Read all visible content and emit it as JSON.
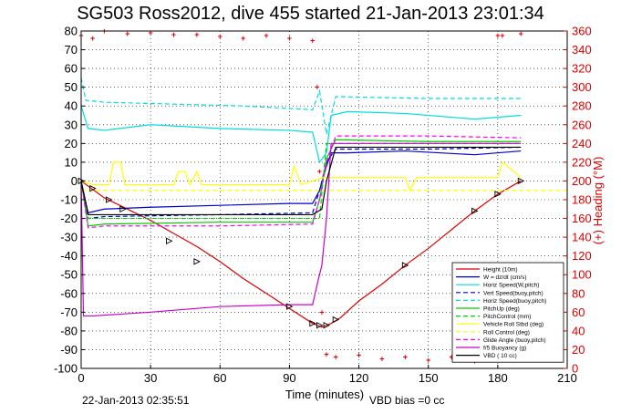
{
  "chart_data": {
    "type": "line",
    "title": "SG503 Ross2012, dive 455 started 21-Jan-2013 23:01:34",
    "xlabel": "Time (minutes)",
    "ylabel_right": "(+) Heading (°M)",
    "xlim": [
      0,
      210
    ],
    "ylim_left": [
      -100,
      80
    ],
    "ylim_right": [
      0,
      360
    ],
    "xticks": [
      0,
      30,
      60,
      90,
      120,
      150,
      180,
      210
    ],
    "yticks_left": [
      -100,
      -90,
      -80,
      -70,
      -60,
      -50,
      -40,
      -30,
      -20,
      -10,
      0,
      10,
      20,
      30,
      40,
      50,
      60,
      70,
      80
    ],
    "yticks_right": [
      0,
      20,
      40,
      60,
      80,
      100,
      120,
      140,
      160,
      180,
      200,
      220,
      240,
      260,
      280,
      300,
      320,
      340,
      360
    ],
    "grid": true,
    "legend_position": "lower-right",
    "footer_left": "22-Jan-2013 02:35:51",
    "footer_right": "VBD bias =0 cc",
    "series": [
      {
        "name": "Height (10m)",
        "color": "#dd0000",
        "style": "solid",
        "x": [
          0,
          10,
          20,
          30,
          40,
          50,
          60,
          70,
          80,
          90,
          100,
          104,
          108,
          112,
          120,
          130,
          140,
          150,
          160,
          170,
          180,
          190
        ],
        "y": [
          0,
          -9,
          -15,
          -21,
          -28,
          -35,
          -43,
          -52,
          -60,
          -68,
          -76,
          -78,
          -76,
          -73,
          -64,
          -55,
          -45,
          -36,
          -26,
          -16,
          -7,
          0
        ]
      },
      {
        "name": "W = dz/dt (cm/s)",
        "color": "#0000cc",
        "style": "solid",
        "x": [
          0,
          3,
          10,
          30,
          60,
          90,
          100,
          103,
          106,
          108,
          115,
          140,
          170,
          190
        ],
        "y": [
          0,
          -17,
          -15,
          -14,
          -13,
          -12,
          -12,
          -5,
          8,
          15,
          15,
          16,
          14,
          16
        ]
      },
      {
        "name": "Horiz Speed(W,pitch)",
        "color": "#00dddd",
        "style": "solid",
        "x": [
          0,
          3,
          10,
          30,
          60,
          90,
          100,
          103,
          106,
          108,
          115,
          140,
          170,
          190
        ],
        "y": [
          40,
          28,
          27,
          30,
          28,
          27,
          26,
          10,
          15,
          35,
          37,
          36,
          33,
          35
        ]
      },
      {
        "name": "Vert Speed(buoy,pitch)",
        "color": "#0000cc",
        "style": "dashed",
        "x": [
          0,
          3,
          10,
          60,
          100,
          103,
          106,
          110,
          150,
          190
        ],
        "y": [
          0,
          -20,
          -19,
          -18,
          -17,
          -5,
          10,
          17,
          17,
          18
        ]
      },
      {
        "name": "Horiz Speed(buoy,pitch)",
        "color": "#00dddd",
        "style": "dashed",
        "x": [
          0,
          2,
          10,
          40,
          70,
          100,
          103,
          106,
          110,
          150,
          190
        ],
        "y": [
          55,
          43,
          42,
          41,
          40,
          38,
          48,
          25,
          45,
          44,
          44
        ]
      },
      {
        "name": "PitchUp (deg)",
        "color": "#00cc00",
        "style": "solid",
        "x": [
          0,
          3,
          10,
          60,
          100,
          103,
          106,
          110,
          150,
          190
        ],
        "y": [
          0,
          -24,
          -23,
          -22,
          -22,
          -10,
          12,
          22,
          21,
          21
        ]
      },
      {
        "name": "PitchControl (mm)",
        "color": "#00cc00",
        "style": "dashed",
        "x": [
          0,
          3,
          100,
          103,
          106,
          110,
          190
        ],
        "y": [
          0,
          -20,
          -20,
          -20,
          20,
          20,
          20
        ]
      },
      {
        "name": "Vehicle Roll Stbd (deg)",
        "color": "#ffff00",
        "style": "solid",
        "x": [
          0,
          5,
          12,
          14,
          17,
          19,
          22,
          40,
          42,
          45,
          47,
          50,
          52,
          90,
          92,
          95,
          100,
          105,
          110,
          140,
          142,
          145,
          180,
          182,
          190
        ],
        "y": [
          0,
          -2,
          -2,
          10,
          10,
          -2,
          -2,
          -2,
          5,
          5,
          -2,
          5,
          -2,
          -2,
          8,
          -2,
          0,
          2,
          2,
          2,
          -5,
          2,
          2,
          10,
          2
        ]
      },
      {
        "name": "Roll Control (deg)",
        "color": "#ffff00",
        "style": "dashed",
        "x": [
          0,
          210
        ],
        "y": [
          -5,
          -5
        ]
      },
      {
        "name": "Glide Angle (buoy,pitch)",
        "color": "#ff00ff",
        "style": "dashed",
        "x": [
          0,
          3,
          10,
          60,
          100,
          103,
          106,
          110,
          150,
          190
        ],
        "y": [
          0,
          -25,
          -24,
          -24,
          -23,
          -10,
          10,
          24,
          24,
          23
        ]
      },
      {
        "name": "f/5 Buoyancy (g)",
        "color": "#cc00cc",
        "style": "solid",
        "x": [
          0,
          1,
          5,
          30,
          60,
          90,
          100,
          102,
          104,
          106,
          108,
          190
        ],
        "y": [
          0,
          -72,
          -72,
          -70,
          -67,
          -66,
          -66,
          -55,
          -45,
          -20,
          20,
          20
        ]
      },
      {
        "name": "VBD ( 10 cc)",
        "color": "#000000",
        "style": "solid",
        "x": [
          0,
          3,
          100,
          104,
          106,
          110,
          190
        ],
        "y": [
          0,
          -18,
          -18,
          -15,
          0,
          18,
          18
        ]
      }
    ],
    "heading_series": {
      "name": "Heading",
      "color": "#dd0000",
      "style": "dotted",
      "axis": "right",
      "x": [
        0,
        5,
        10,
        20,
        30,
        40,
        50,
        60,
        70,
        80,
        90,
        100,
        102,
        103,
        104,
        106,
        110,
        120,
        130,
        140,
        150,
        160,
        170,
        178,
        180,
        182,
        190
      ],
      "y": [
        355,
        352,
        360,
        357,
        358,
        356,
        356,
        354,
        352,
        355,
        352,
        350,
        300,
        210,
        60,
        15,
        12,
        14,
        10,
        12,
        9,
        12,
        8,
        12,
        355,
        355,
        357
      ]
    },
    "vbd_markers": {
      "x": [
        0,
        5,
        12,
        18,
        38,
        50,
        90,
        100,
        103,
        106,
        110,
        140,
        170,
        180,
        190
      ],
      "y": [
        0,
        -4,
        -10,
        -15,
        -32,
        -43,
        -67,
        -76,
        -77,
        -77,
        -74,
        -45,
        -16,
        -7,
        0
      ]
    }
  }
}
